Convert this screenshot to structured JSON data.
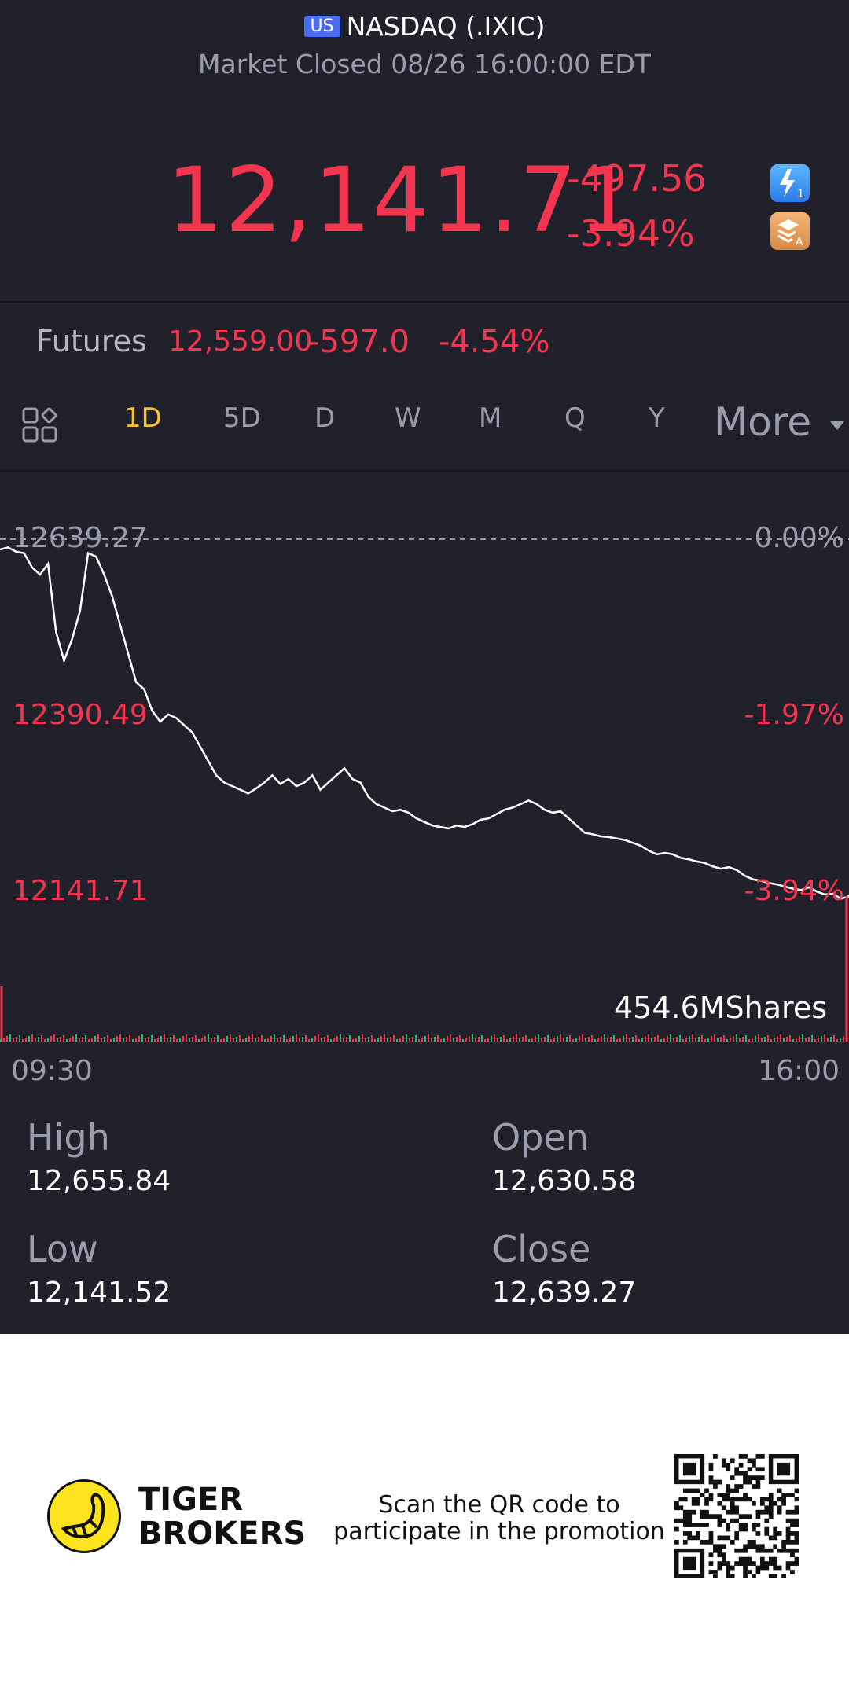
{
  "header": {
    "market_badge": "US",
    "title": "NASDAQ (.IXIC)",
    "status": "Market Closed 08/26 16:00:00 EDT"
  },
  "quote": {
    "price": "12,141.71",
    "change": "-497.56",
    "change_pct": "-3.94%"
  },
  "futures": {
    "label": "Futures",
    "price": "12,559.00",
    "change": "-597.0",
    "change_pct": "-4.54%"
  },
  "tabs": [
    "1D",
    "5D",
    "D",
    "W",
    "M",
    "Q",
    "Y"
  ],
  "active_tab": "1D",
  "more_label": "More",
  "chart_data": {
    "type": "line",
    "x_start": "09:30",
    "x_end": "16:00",
    "y_labels_left": [
      "12639.27",
      "12390.49",
      "12141.71"
    ],
    "y_labels_right": [
      "0.00%",
      "-1.97%",
      "-3.94%"
    ],
    "ylim": [
      12141.71,
      12639.27
    ],
    "reference": 12639.27,
    "volume_label": "454.6MShares",
    "series": [
      {
        "values": [
          12625,
          12628,
          12622,
          12620,
          12600,
          12590,
          12605,
          12510,
          12470,
          12500,
          12540,
          12620,
          12615,
          12590,
          12560,
          12520,
          12480,
          12440,
          12430,
          12400,
          12385,
          12395,
          12390,
          12380,
          12370,
          12350,
          12330,
          12310,
          12300,
          12295,
          12290,
          12285,
          12292,
          12300,
          12310,
          12298,
          12305,
          12295,
          12300,
          12310,
          12290,
          12300,
          12310,
          12320,
          12305,
          12300,
          12280,
          12270,
          12265,
          12260,
          12262,
          12258,
          12250,
          12245,
          12240,
          12238,
          12236,
          12240,
          12238,
          12242,
          12248,
          12250,
          12256,
          12262,
          12265,
          12270,
          12275,
          12270,
          12262,
          12258,
          12260,
          12250,
          12240,
          12230,
          12228,
          12225,
          12224,
          12222,
          12220,
          12216,
          12212,
          12205,
          12200,
          12202,
          12200,
          12195,
          12193,
          12190,
          12188,
          12183,
          12180,
          12182,
          12178,
          12170,
          12165,
          12163,
          12160,
          12158,
          12155,
          12152,
          12150,
          12154,
          12148,
          12144,
          12145,
          12138,
          12141.71
        ]
      }
    ]
  },
  "stats": {
    "high_label": "High",
    "high_value": "12,655.84",
    "open_label": "Open",
    "open_value": "12,630.58",
    "low_label": "Low",
    "low_value": "12,141.52",
    "close_label": "Close",
    "close_value": "12,639.27"
  },
  "footer": {
    "brand_line1": "TIGER",
    "brand_line2": "BROKERS",
    "promo_line1": "Scan the QR code to",
    "promo_line2": "participate in the promotion"
  },
  "colors": {
    "down": "#f4354f",
    "active_tab": "#f8c13b",
    "background": "#21212c"
  }
}
